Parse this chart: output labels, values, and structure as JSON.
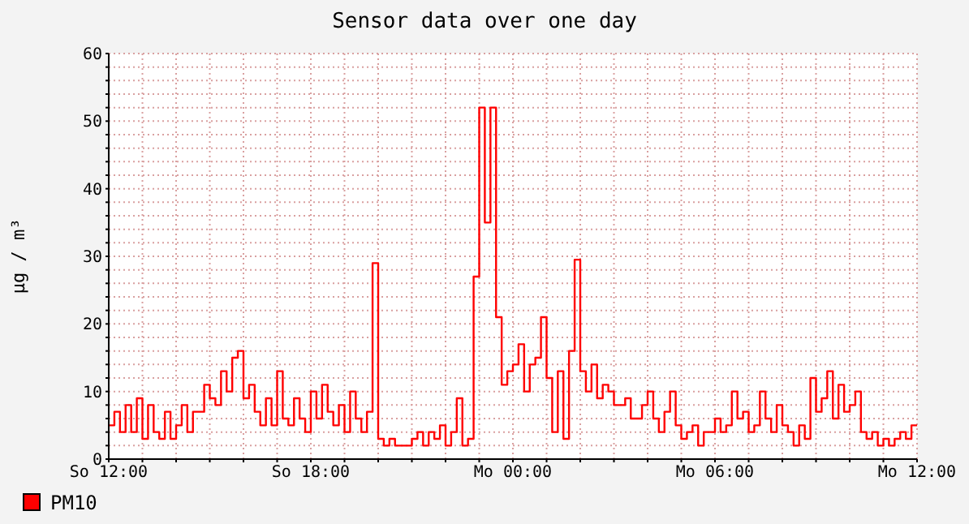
{
  "chart_data": {
    "type": "step",
    "title": "Sensor data over one day",
    "ylabel": "µg / m³",
    "legend": "bottom left",
    "grid": true,
    "marker": "none",
    "line_style": "solid",
    "ylim": [
      0,
      60
    ],
    "yticks": [
      0,
      {
        "value": 2,
        "label": null
      },
      {
        "value": 4,
        "label": null
      },
      {
        "value": 6,
        "label": null
      },
      {
        "value": 8,
        "label": null
      },
      10,
      {
        "value": 12,
        "label": null
      },
      {
        "value": 14,
        "label": null
      },
      {
        "value": 16,
        "label": null
      },
      {
        "value": 18,
        "label": null
      },
      20,
      {
        "value": 22,
        "label": null
      },
      {
        "value": 24,
        "label": null
      },
      {
        "value": 26,
        "label": null
      },
      {
        "value": 28,
        "label": null
      },
      30,
      {
        "value": 32,
        "label": null
      },
      {
        "value": 34,
        "label": null
      },
      {
        "value": 36,
        "label": null
      },
      {
        "value": 38,
        "label": null
      },
      40,
      {
        "value": 42,
        "label": null
      },
      {
        "value": 44,
        "label": null
      },
      {
        "value": 46,
        "label": null
      },
      {
        "value": 48,
        "label": null
      },
      50,
      {
        "value": 52,
        "label": null
      },
      {
        "value": 54,
        "label": null
      },
      {
        "value": 56,
        "label": null
      },
      {
        "value": 58,
        "label": null
      },
      60
    ],
    "categories": [
      "So 12:00",
      null,
      null,
      null,
      null,
      null,
      null,
      null,
      null,
      null,
      null,
      null,
      null,
      null,
      null,
      null,
      null,
      null,
      null,
      null,
      null,
      null,
      null,
      null,
      null,
      null,
      null,
      null,
      null,
      null,
      null,
      null,
      null,
      null,
      null,
      null,
      "So 18:00",
      null,
      null,
      null,
      null,
      null,
      null,
      null,
      null,
      null,
      null,
      null,
      null,
      null,
      null,
      null,
      null,
      null,
      null,
      null,
      null,
      null,
      null,
      null,
      null,
      null,
      null,
      null,
      null,
      null,
      null,
      null,
      null,
      null,
      null,
      null,
      "Mo 00:00",
      null,
      null,
      null,
      null,
      null,
      null,
      null,
      null,
      null,
      null,
      null,
      null,
      null,
      null,
      null,
      null,
      null,
      null,
      null,
      null,
      null,
      null,
      null,
      null,
      null,
      null,
      null,
      null,
      null,
      null,
      null,
      null,
      null,
      null,
      null,
      "Mo 06:00",
      null,
      null,
      null,
      null,
      null,
      null,
      null,
      null,
      null,
      null,
      null,
      null,
      null,
      null,
      null,
      null,
      null,
      null,
      null,
      null,
      null,
      null,
      null,
      null,
      null,
      null,
      null,
      null,
      null,
      null,
      null,
      null,
      null,
      null,
      null,
      "Mo 12:00"
    ],
    "series": [
      {
        "name": "PM10",
        "color": "#ff0000",
        "values": [
          5,
          7,
          4,
          8,
          4,
          9,
          3,
          8,
          4,
          3,
          7,
          3,
          5,
          8,
          4,
          7,
          7,
          11,
          9,
          8,
          13,
          10,
          15,
          16,
          9,
          11,
          7,
          5,
          9,
          5,
          13,
          6,
          5,
          9,
          6,
          4,
          10,
          6,
          11,
          7,
          5,
          8,
          4,
          10,
          6,
          4,
          7,
          29,
          3,
          2,
          3,
          2,
          2,
          2,
          3,
          4,
          2,
          4,
          3,
          5,
          2,
          4,
          9,
          2,
          3,
          27,
          52,
          35,
          52,
          21,
          11,
          13,
          14,
          17,
          10,
          14,
          15,
          21,
          12,
          4,
          13,
          3,
          16,
          29.5,
          13,
          10,
          14,
          9,
          11,
          10,
          8,
          8,
          9,
          6,
          6,
          8,
          10,
          6,
          4,
          7,
          10,
          5,
          3,
          4,
          5,
          2,
          4,
          4,
          6,
          4,
          5,
          10,
          6,
          7,
          4,
          5,
          10,
          6,
          4,
          8,
          5,
          4,
          2,
          5,
          3,
          12,
          7,
          9,
          13,
          6,
          11,
          7,
          8,
          10,
          4,
          3,
          4,
          2,
          3,
          2,
          3,
          4,
          3,
          5,
          5
        ]
      }
    ]
  }
}
